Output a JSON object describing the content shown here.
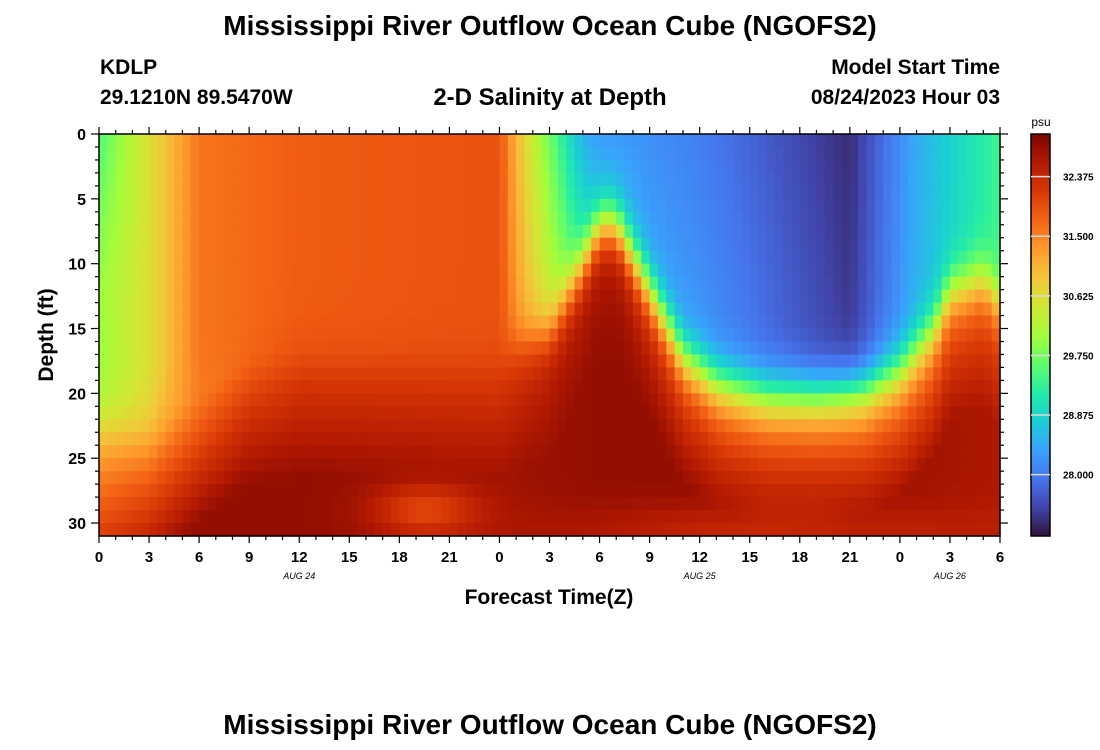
{
  "header": {
    "title": "Mississippi River Outflow Ocean Cube (NGOFS2)",
    "station_id": "KDLP",
    "station_coords": "29.1210N  89.5470W",
    "subtitle": "2-D Salinity at Depth",
    "model_start_label": "Model Start Time",
    "model_start_value": "08/24/2023 Hour 03"
  },
  "footer": {
    "title": "Mississippi River Outflow Ocean Cube (NGOFS2)"
  },
  "chart_data": {
    "type": "heatmap",
    "title": "2-D Salinity at Depth",
    "xlabel": "Forecast Time(Z)",
    "ylabel": "Depth (ft)",
    "x_tick_labels": [
      "0",
      "3",
      "6",
      "9",
      "12",
      "15",
      "18",
      "21",
      "0",
      "3",
      "6",
      "9",
      "12",
      "15",
      "18",
      "21",
      "0",
      "3",
      "6"
    ],
    "date_labels": [
      {
        "text": "AUG 24",
        "tick_index": 4
      },
      {
        "text": "AUG 25",
        "tick_index": 12
      },
      {
        "text": "AUG 26",
        "tick_index": 17
      }
    ],
    "x_range_hours": [
      0,
      54
    ],
    "y_ticks": [
      0,
      5,
      10,
      15,
      20,
      25,
      30
    ],
    "ylim": [
      0,
      31
    ],
    "y_inverted": true,
    "colorbar": {
      "unit": "psu",
      "tick_labels": [
        "32.375",
        "31.500",
        "30.625",
        "29.750",
        "28.875",
        "28.000"
      ],
      "range": [
        27.1,
        33.0
      ],
      "colors": [
        "#30123b",
        "#4145ab",
        "#4675ed",
        "#39a2fc",
        "#1bcfd4",
        "#24eca6",
        "#61fc6c",
        "#a4fc3b",
        "#d1e834",
        "#f3c63a",
        "#fe9b2d",
        "#f36315",
        "#d93806",
        "#b11901",
        "#7a0403"
      ]
    },
    "field_description": {
      "x_unit": "hours from model start",
      "y_unit": "ft",
      "value_unit": "psu"
    }
  }
}
